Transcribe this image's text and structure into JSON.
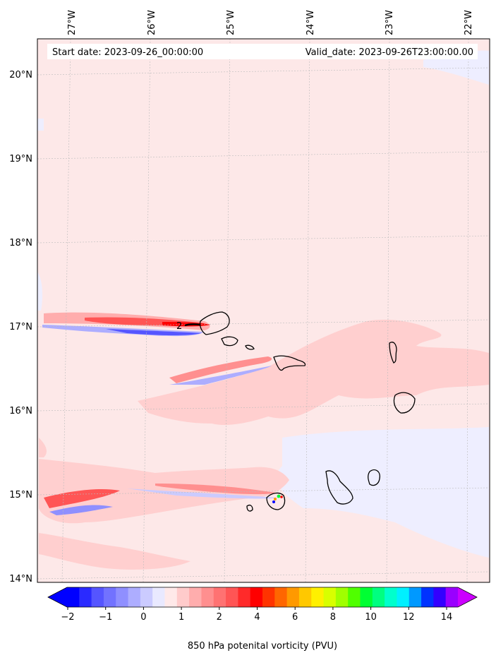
{
  "header": {
    "start_date": "Start date: 2023-09-26_00:00:00",
    "valid_date": "Valid_date: 2023-09-26T23:00:00.00"
  },
  "map": {
    "lon_labels": [
      "27°W",
      "26°W",
      "25°W",
      "24°W",
      "23°W",
      "22°W"
    ],
    "lat_labels": [
      "20°N",
      "19°N",
      "18°N",
      "17°N",
      "16°N",
      "15°N",
      "14°N"
    ],
    "contour_label": "2",
    "background_color": "#fde8e8"
  },
  "colorbar": {
    "label": "850 hPa potenital vorticity (PVU)",
    "tick_labels": [
      "−2",
      "−1",
      "0",
      "1",
      "2",
      "4",
      "6",
      "8",
      "10",
      "12",
      "14"
    ],
    "colors": [
      "#0000ff",
      "#2a2aff",
      "#5555ff",
      "#7272ff",
      "#8f8fff",
      "#adadff",
      "#cbcbff",
      "#e9e9ff",
      "#ffe9e9",
      "#ffcbcb",
      "#ffadad",
      "#ff8f8f",
      "#ff7272",
      "#ff5555",
      "#ff2a2a",
      "#ff0000",
      "#ff3300",
      "#ff6600",
      "#ff9900",
      "#ffc800",
      "#fff000",
      "#d8ff00",
      "#a0ff00",
      "#50ff00",
      "#00ff33",
      "#00ff80",
      "#00ffcc",
      "#00f0ff",
      "#0099ff",
      "#0033ff",
      "#3300ff",
      "#9900ff"
    ],
    "extend_low_color": "#0000ff",
    "extend_high_color": "#cc00ff"
  }
}
